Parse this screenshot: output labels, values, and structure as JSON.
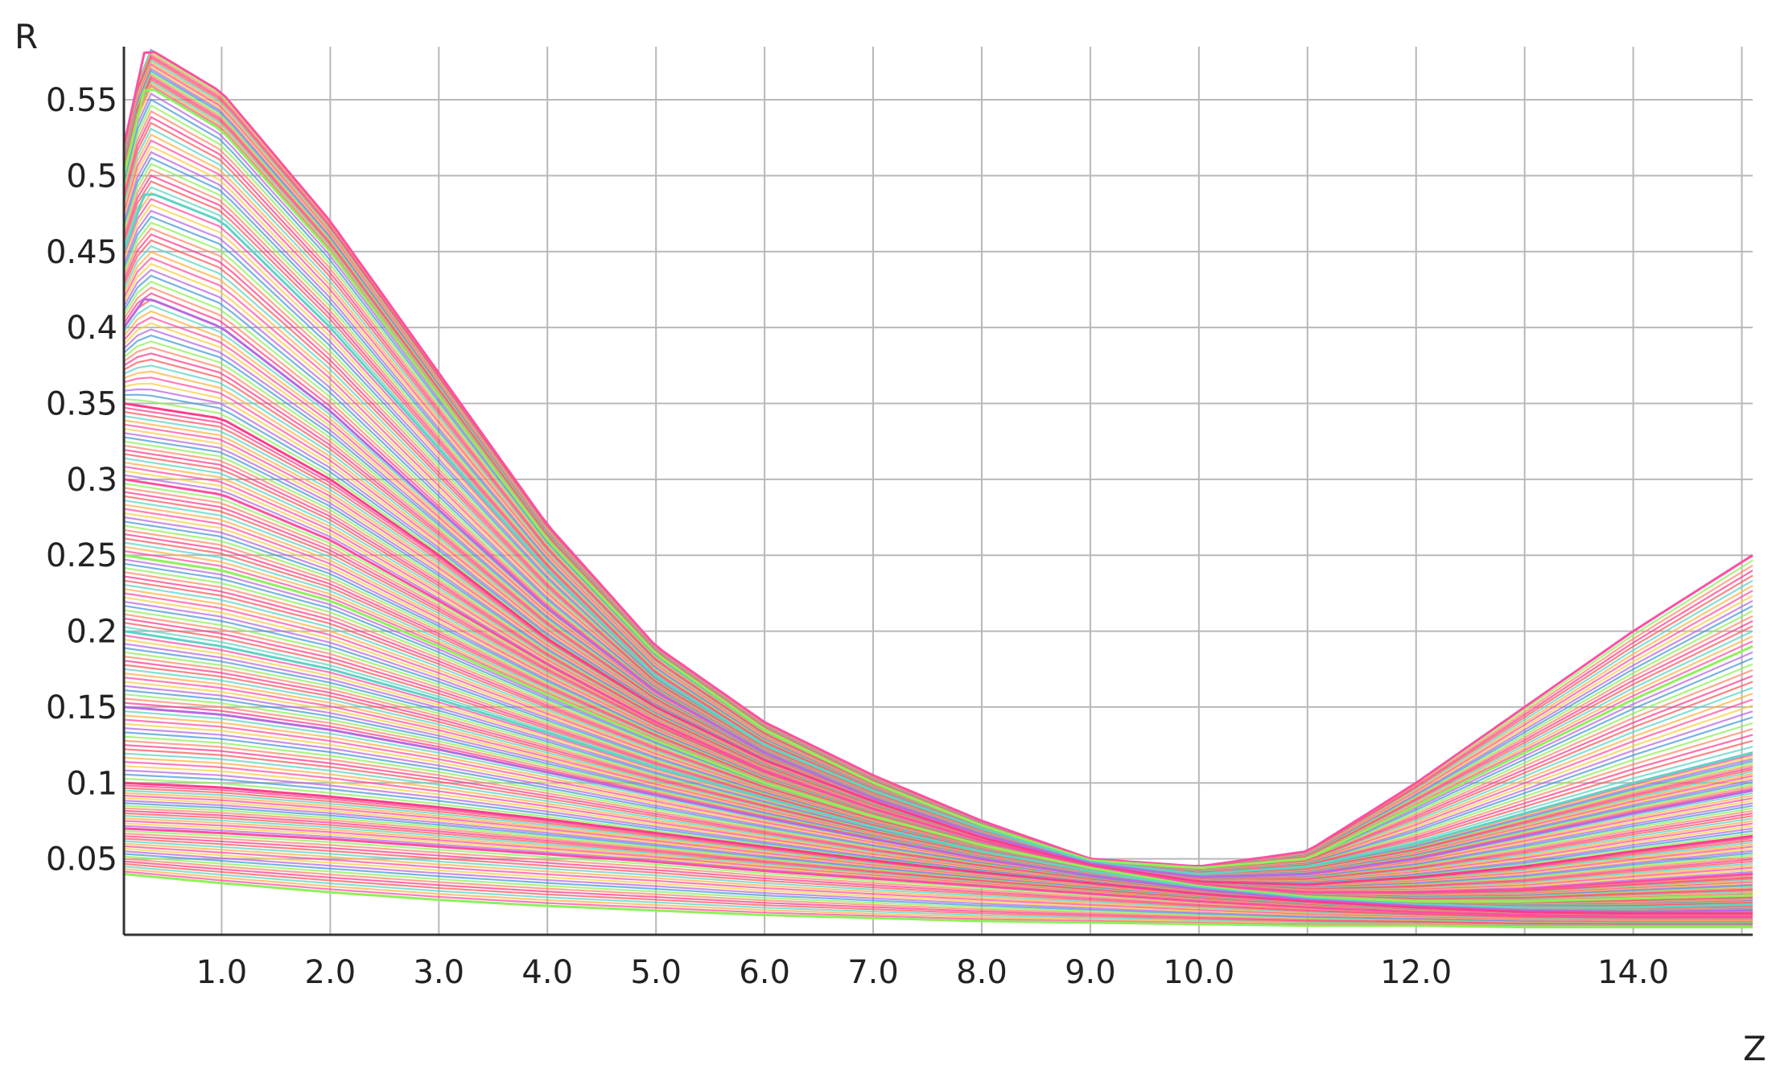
{
  "chart_data": {
    "type": "line",
    "title": "",
    "xlabel": "Z",
    "ylabel": "R",
    "xlim": [
      0.1,
      15.1
    ],
    "ylim": [
      0.0,
      0.585
    ],
    "grid": true,
    "legend": "none",
    "x_ticks": [
      {
        "value": 1.0,
        "label": "1.0"
      },
      {
        "value": 2.0,
        "label": "2.0"
      },
      {
        "value": 3.0,
        "label": "3.0"
      },
      {
        "value": 4.0,
        "label": "4.0"
      },
      {
        "value": 5.0,
        "label": "5.0"
      },
      {
        "value": 6.0,
        "label": "6.0"
      },
      {
        "value": 7.0,
        "label": "7.0"
      },
      {
        "value": 8.0,
        "label": "8.0"
      },
      {
        "value": 9.0,
        "label": "9.0"
      },
      {
        "value": 10.0,
        "label": "10.0"
      },
      {
        "value": 12.0,
        "label": "12.0"
      },
      {
        "value": 14.0,
        "label": "14.0"
      }
    ],
    "x_grid": [
      1.0,
      2.0,
      3.0,
      4.0,
      5.0,
      6.0,
      7.0,
      8.0,
      9.0,
      10.0,
      11.0,
      12.0,
      13.0,
      14.0,
      15.0
    ],
    "y_ticks": [
      {
        "value": 0.05,
        "label": "0.05"
      },
      {
        "value": 0.1,
        "label": "0.1"
      },
      {
        "value": 0.15,
        "label": "0.15"
      },
      {
        "value": 0.2,
        "label": "0.2"
      },
      {
        "value": 0.25,
        "label": "0.25"
      },
      {
        "value": 0.3,
        "label": "0.3"
      },
      {
        "value": 0.35,
        "label": "0.35"
      },
      {
        "value": 0.4,
        "label": "0.4"
      },
      {
        "value": 0.45,
        "label": "0.45"
      },
      {
        "value": 0.5,
        "label": "0.5"
      },
      {
        "value": 0.55,
        "label": "0.55"
      }
    ],
    "series_colors": [
      "#4a9ad8",
      "#ff4fa3",
      "#ff5a5a",
      "#8ef05a",
      "#f7d04a",
      "#5fd3c4",
      "#ff8a6a",
      "#b86ae0",
      "#ffb347",
      "#ff3d8b"
    ],
    "series": [
      {
        "x": [
          0.1,
          0.3,
          1.0,
          2.0,
          3.0,
          4.0,
          5.0,
          6.0,
          7.0,
          8.0,
          9.0,
          10.0,
          11.0,
          12.0,
          13.0,
          14.0,
          15.1
        ],
        "y": [
          0.52,
          0.585,
          0.555,
          0.47,
          0.37,
          0.27,
          0.19,
          0.14,
          0.105,
          0.075,
          0.05,
          0.045,
          0.055,
          0.1,
          0.15,
          0.2,
          0.25
        ]
      },
      {
        "x": [
          0.1,
          0.3,
          1.0,
          2.0,
          3.0,
          4.0,
          5.0,
          6.0,
          7.0,
          8.0,
          9.0,
          10.0,
          11.0,
          12.0,
          13.0,
          14.0,
          15.1
        ],
        "y": [
          0.5,
          0.56,
          0.53,
          0.45,
          0.355,
          0.26,
          0.185,
          0.135,
          0.1,
          0.072,
          0.049,
          0.044,
          0.05,
          0.085,
          0.12,
          0.155,
          0.19
        ]
      },
      {
        "x": [
          0.1,
          0.3,
          1.0,
          2.0,
          3.0,
          4.0,
          5.0,
          6.0,
          7.0,
          8.0,
          9.0,
          10.0,
          11.0,
          12.0,
          13.0,
          14.0,
          15.1
        ],
        "y": [
          0.45,
          0.49,
          0.47,
          0.4,
          0.32,
          0.24,
          0.17,
          0.125,
          0.095,
          0.07,
          0.048,
          0.04,
          0.045,
          0.06,
          0.08,
          0.1,
          0.12
        ]
      },
      {
        "x": [
          0.1,
          0.3,
          1.0,
          2.0,
          3.0,
          4.0,
          5.0,
          6.0,
          7.0,
          8.0,
          9.0,
          10.0,
          11.0,
          12.0,
          13.0,
          14.0,
          15.1
        ],
        "y": [
          0.4,
          0.42,
          0.4,
          0.345,
          0.28,
          0.215,
          0.16,
          0.12,
          0.09,
          0.066,
          0.047,
          0.038,
          0.04,
          0.05,
          0.065,
          0.08,
          0.095
        ]
      },
      {
        "x": [
          0.1,
          1.0,
          2.0,
          3.0,
          4.0,
          5.0,
          6.0,
          7.0,
          8.0,
          9.0,
          10.0,
          11.0,
          12.0,
          13.0,
          14.0,
          15.1
        ],
        "y": [
          0.35,
          0.34,
          0.3,
          0.25,
          0.195,
          0.15,
          0.115,
          0.088,
          0.064,
          0.046,
          0.035,
          0.033,
          0.038,
          0.045,
          0.055,
          0.065
        ]
      },
      {
        "x": [
          0.1,
          1.0,
          2.0,
          3.0,
          4.0,
          5.0,
          6.0,
          7.0,
          8.0,
          9.0,
          10.0,
          11.0,
          12.0,
          13.0,
          14.0,
          15.1
        ],
        "y": [
          0.3,
          0.29,
          0.26,
          0.22,
          0.178,
          0.14,
          0.108,
          0.083,
          0.062,
          0.045,
          0.033,
          0.028,
          0.028,
          0.03,
          0.035,
          0.04
        ]
      },
      {
        "x": [
          0.1,
          1.0,
          2.0,
          3.0,
          4.0,
          5.0,
          6.0,
          7.0,
          8.0,
          9.0,
          10.0,
          11.0,
          12.0,
          13.0,
          14.0,
          15.1
        ],
        "y": [
          0.25,
          0.24,
          0.22,
          0.19,
          0.158,
          0.128,
          0.1,
          0.078,
          0.059,
          0.044,
          0.032,
          0.025,
          0.022,
          0.022,
          0.024,
          0.026
        ]
      },
      {
        "x": [
          0.1,
          1.0,
          2.0,
          3.0,
          4.0,
          5.0,
          6.0,
          7.0,
          8.0,
          9.0,
          10.0,
          11.0,
          12.0,
          13.0,
          14.0,
          15.1
        ],
        "y": [
          0.2,
          0.19,
          0.175,
          0.155,
          0.133,
          0.11,
          0.09,
          0.071,
          0.055,
          0.042,
          0.031,
          0.024,
          0.02,
          0.018,
          0.018,
          0.02
        ]
      },
      {
        "x": [
          0.1,
          1.0,
          2.0,
          3.0,
          4.0,
          5.0,
          6.0,
          7.0,
          8.0,
          9.0,
          10.0,
          11.0,
          12.0,
          13.0,
          14.0,
          15.1
        ],
        "y": [
          0.15,
          0.145,
          0.135,
          0.122,
          0.107,
          0.092,
          0.077,
          0.063,
          0.05,
          0.039,
          0.03,
          0.023,
          0.019,
          0.016,
          0.015,
          0.016
        ]
      },
      {
        "x": [
          0.1,
          1.0,
          2.0,
          3.0,
          4.0,
          5.0,
          6.0,
          7.0,
          8.0,
          9.0,
          10.0,
          11.0,
          12.0,
          13.0,
          14.0,
          15.1
        ],
        "y": [
          0.1,
          0.097,
          0.091,
          0.084,
          0.076,
          0.067,
          0.058,
          0.049,
          0.041,
          0.034,
          0.027,
          0.022,
          0.018,
          0.015,
          0.014,
          0.014
        ]
      },
      {
        "x": [
          0.1,
          1.0,
          2.0,
          3.0,
          4.0,
          5.0,
          6.0,
          7.0,
          8.0,
          9.0,
          10.0,
          11.0,
          12.0,
          13.0,
          14.0,
          15.1
        ],
        "y": [
          0.07,
          0.067,
          0.063,
          0.058,
          0.053,
          0.048,
          0.042,
          0.037,
          0.032,
          0.027,
          0.022,
          0.018,
          0.015,
          0.013,
          0.012,
          0.012
        ]
      },
      {
        "x": [
          0.1,
          1.0,
          2.0,
          3.0,
          4.0,
          5.0,
          6.0,
          7.0,
          8.0,
          9.0,
          10.0,
          11.0,
          12.0,
          13.0,
          14.0,
          15.1
        ],
        "y": [
          0.04,
          0.034,
          0.028,
          0.023,
          0.019,
          0.016,
          0.013,
          0.011,
          0.009,
          0.008,
          0.007,
          0.006,
          0.006,
          0.005,
          0.005,
          0.005
        ]
      }
    ]
  }
}
